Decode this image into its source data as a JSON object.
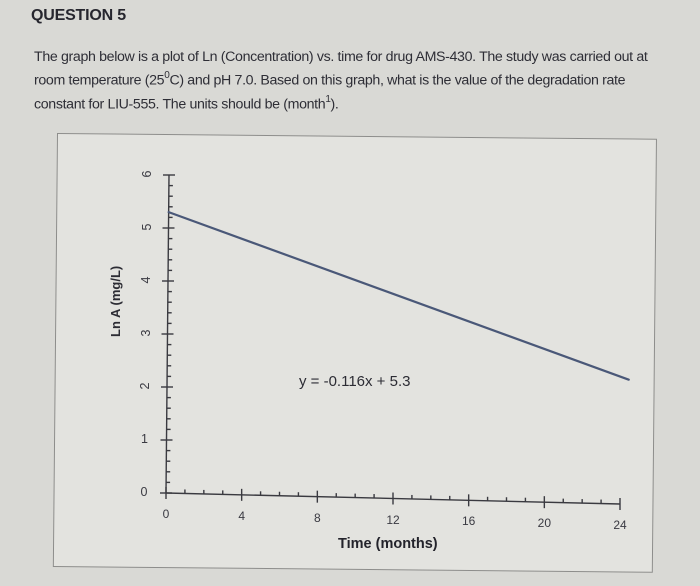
{
  "question": {
    "title": "QUESTION 5",
    "text_line1": "The graph below is a plot of Ln (Concentration) vs. time for drug AMS-430. The study was carried out at",
    "text_line2_a": "room temperature (25",
    "text_line2_sup": "0",
    "text_line2_b": "C) and pH 7.0. Based on this graph, what is the value of the degradation rate",
    "text_line3_a": "constant for LIU-555. The units should be (month",
    "text_line3_sup": "1",
    "text_line3_b": ")."
  },
  "colors": {
    "background": "#d9d9d5",
    "chart_background": "#e3e3df",
    "line": "#4a5878",
    "axis": "#3a3a40",
    "text": "#2b2b33"
  },
  "chart_data": {
    "type": "line",
    "title": "",
    "xlabel": "Time (months)",
    "ylabel": "Ln A (mg/L)",
    "xlim": [
      0,
      24
    ],
    "ylim": [
      0,
      6
    ],
    "x_ticks": [
      "0",
      "4",
      "8",
      "12",
      "16",
      "20",
      "24"
    ],
    "y_ticks": [
      "0",
      "1",
      "2",
      "3",
      "4",
      "5",
      "6"
    ],
    "x_minor_step": 1,
    "y_minor_step": 0.2,
    "grid": false,
    "legend": null,
    "annotation": "y = -0.116x + 5.3",
    "series": [
      {
        "name": "Ln A fit",
        "slope": -0.116,
        "intercept": 5.3,
        "x": [
          0,
          4,
          8,
          12,
          16,
          20,
          24
        ],
        "y": [
          5.3,
          4.836,
          4.372,
          3.908,
          3.444,
          2.98,
          2.516
        ]
      }
    ]
  }
}
